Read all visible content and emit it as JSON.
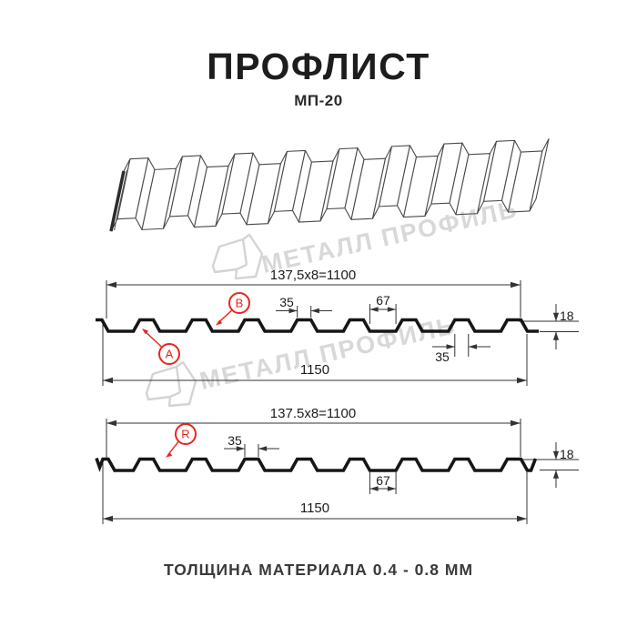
{
  "title": "ПРОФЛИСТ",
  "subtitle": "МП-20",
  "footer": "ТОЛЩИНА МАТЕРИАЛА 0.4 - 0.8 ММ",
  "watermark": {
    "text": "МЕТАЛЛ ПРОФИЛЬ"
  },
  "colors": {
    "accent_red": "#e9251c",
    "line_black": "#161616",
    "watermark_gray": "#d8d8d8"
  },
  "diagrams": [
    {
      "name": "section-a-b",
      "pitch_dim": "137,5x8=1100",
      "crest_top_dim": "35",
      "valley_dim": "67",
      "height_dim": "18",
      "crest_bottom_dim": "35",
      "total_width_dim": "1150",
      "labels": [
        "A",
        "B"
      ]
    },
    {
      "name": "section-r",
      "pitch_dim": "137.5x8=1100",
      "crest_top_dim": "35",
      "valley_dim": "67",
      "height_dim": "18",
      "total_width_dim": "1150",
      "labels": [
        "R"
      ]
    }
  ]
}
